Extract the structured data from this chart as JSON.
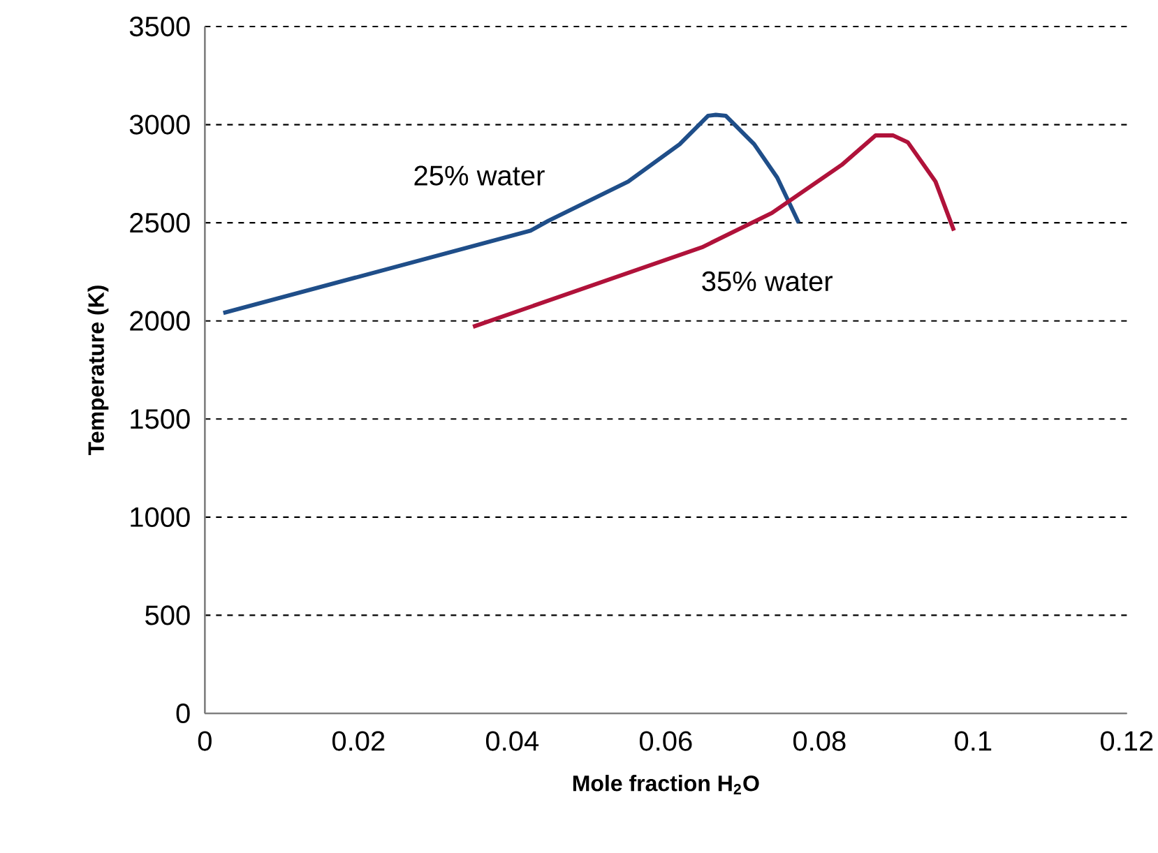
{
  "chart_data": {
    "type": "line",
    "xlabel": "Mole fraction H$_{2}$O",
    "ylabel": "Temperature (K)",
    "xlim": [
      0,
      0.12
    ],
    "xticks": [
      0,
      0.02,
      0.04,
      0.06,
      0.08,
      0.1,
      0.12
    ],
    "ylim": [
      0,
      3500
    ],
    "yticks": [
      0,
      500,
      1000,
      1500,
      2000,
      2500,
      3000,
      3500
    ],
    "grid": "y",
    "marker": "none",
    "line_style": "solid",
    "series": [
      {
        "name": "25% water",
        "color": "#1f4e89",
        "x": [
          0.0024,
          0.0424,
          0.0447,
          0.0551,
          0.0618,
          0.0655,
          0.0665,
          0.0678,
          0.0715,
          0.0745,
          0.0773
        ],
        "values": [
          2040,
          2460,
          2510,
          2710,
          2900,
          3045,
          3050,
          3045,
          2900,
          2730,
          2500
        ]
      },
      {
        "name": "35% water",
        "color": "#b0123a",
        "x": [
          0.0349,
          0.0647,
          0.0738,
          0.0829,
          0.0873,
          0.0896,
          0.0915,
          0.0951,
          0.0975
        ],
        "values": [
          1970,
          2375,
          2550,
          2795,
          2945,
          2945,
          2910,
          2710,
          2460
        ]
      }
    ]
  }
}
